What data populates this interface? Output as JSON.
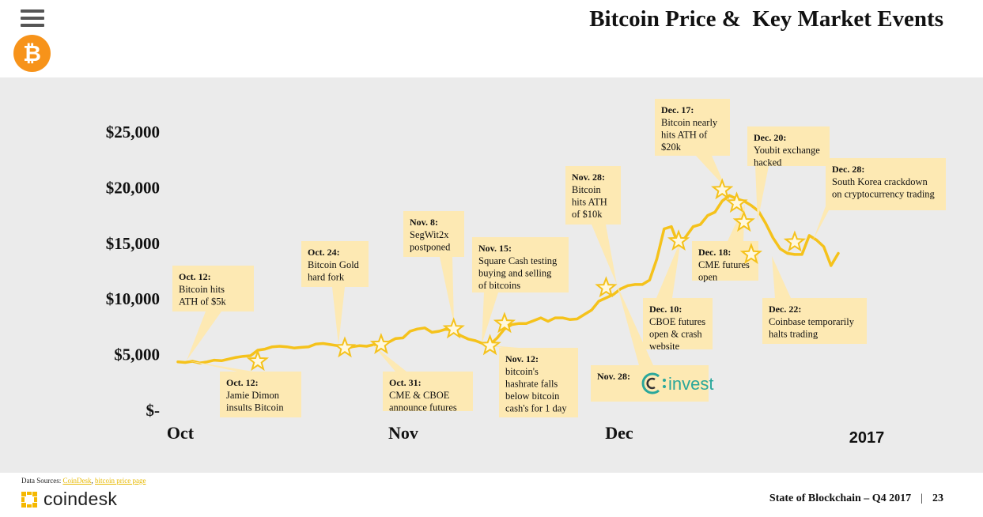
{
  "header": {
    "title": "Bitcoin Price &  Key Market Events"
  },
  "icons": {
    "menu": "hamburger-menu-icon",
    "logo": "bitcoin-logo-icon"
  },
  "footer": {
    "sources_prefix": "Data Sources: ",
    "source_1": "CoinDesk",
    "source_sep": ", ",
    "source_2": "bitcoin price page",
    "brand": "coindesk",
    "report": "State of Blockchain – Q4 2017",
    "separator": "|",
    "page": "23"
  },
  "colors": {
    "line": "#f5c21b",
    "annotation": "#fde9b3",
    "panel": "#ebebeb",
    "bitcoin": "#f7931a",
    "coindesk": "#f5b800",
    "invest": "#2aa79b"
  },
  "chart_data": {
    "type": "line",
    "title": "Bitcoin Price &  Key Market Events",
    "yticks": [
      "$25,000",
      "$20,000",
      "$15,000",
      "$10,000",
      "$5,000",
      "$-"
    ],
    "ytick_values": [
      25000,
      20000,
      15000,
      10000,
      5000,
      0
    ],
    "ylim": [
      0,
      25000
    ],
    "xticks": [
      "Oct",
      "Nov",
      "Dec"
    ],
    "xtick_values": [
      1,
      32,
      62
    ],
    "year_label": "2017",
    "xlim": [
      1,
      92
    ],
    "series": [
      {
        "points": [
          [
            1,
            4350
          ],
          [
            2,
            4300
          ],
          [
            3,
            4400
          ],
          [
            4,
            4250
          ],
          [
            5,
            4350
          ],
          [
            6,
            4500
          ],
          [
            7,
            4450
          ],
          [
            8,
            4600
          ],
          [
            9,
            4750
          ],
          [
            10,
            4850
          ],
          [
            11,
            4900
          ],
          [
            12,
            5400
          ],
          [
            13,
            5500
          ],
          [
            14,
            5700
          ],
          [
            15,
            5750
          ],
          [
            16,
            5700
          ],
          [
            17,
            5600
          ],
          [
            18,
            5650
          ],
          [
            19,
            5700
          ],
          [
            20,
            5950
          ],
          [
            21,
            6000
          ],
          [
            22,
            5900
          ],
          [
            23,
            5800
          ],
          [
            24,
            5500
          ],
          [
            25,
            5700
          ],
          [
            26,
            5800
          ],
          [
            27,
            5750
          ],
          [
            28,
            5900
          ],
          [
            29,
            5900
          ],
          [
            30,
            6100
          ],
          [
            31,
            6450
          ],
          [
            32,
            6500
          ],
          [
            33,
            7100
          ],
          [
            34,
            7300
          ],
          [
            35,
            7400
          ],
          [
            36,
            7000
          ],
          [
            37,
            7100
          ],
          [
            38,
            7300
          ],
          [
            39,
            7100
          ],
          [
            40,
            6700
          ],
          [
            41,
            6400
          ],
          [
            42,
            6250
          ],
          [
            43,
            6000
          ],
          [
            44,
            5900
          ],
          [
            45,
            6500
          ],
          [
            46,
            7300
          ],
          [
            47,
            7700
          ],
          [
            48,
            7800
          ],
          [
            49,
            7800
          ],
          [
            50,
            8050
          ],
          [
            51,
            8300
          ],
          [
            52,
            8000
          ],
          [
            53,
            8300
          ],
          [
            54,
            8300
          ],
          [
            55,
            8150
          ],
          [
            56,
            8200
          ],
          [
            57,
            8600
          ],
          [
            58,
            9000
          ],
          [
            59,
            9800
          ],
          [
            60,
            10100
          ],
          [
            61,
            10400
          ],
          [
            62,
            10900
          ],
          [
            63,
            11200
          ],
          [
            64,
            11300
          ],
          [
            65,
            11300
          ],
          [
            66,
            11700
          ],
          [
            67,
            13600
          ],
          [
            68,
            16300
          ],
          [
            69,
            16500
          ],
          [
            70,
            14800
          ],
          [
            71,
            15600
          ],
          [
            72,
            16500
          ],
          [
            73,
            16700
          ],
          [
            74,
            17500
          ],
          [
            75,
            17800
          ],
          [
            76,
            18800
          ],
          [
            77,
            19300
          ],
          [
            78,
            19000
          ],
          [
            79,
            18800
          ],
          [
            80,
            18400
          ],
          [
            81,
            17900
          ],
          [
            82,
            16800
          ],
          [
            83,
            15500
          ],
          [
            84,
            14500
          ],
          [
            85,
            14100
          ],
          [
            86,
            14000
          ],
          [
            87,
            14000
          ],
          [
            88,
            15700
          ],
          [
            89,
            15300
          ],
          [
            90,
            14700
          ],
          [
            91,
            13000
          ],
          [
            92,
            14100
          ]
        ]
      }
    ],
    "event_markers": [
      {
        "x": 12,
        "y": 4400
      },
      {
        "x": 24,
        "y": 5600
      },
      {
        "x": 29,
        "y": 5900
      },
      {
        "x": 39,
        "y": 7300
      },
      {
        "x": 44,
        "y": 5800
      },
      {
        "x": 46,
        "y": 7800
      },
      {
        "x": 60,
        "y": 11000
      },
      {
        "x": 70,
        "y": 15200
      },
      {
        "x": 76,
        "y": 19800
      },
      {
        "x": 78,
        "y": 18600
      },
      {
        "x": 79,
        "y": 16900
      },
      {
        "x": 80,
        "y": 14000
      },
      {
        "x": 86,
        "y": 15100
      }
    ],
    "annotations": [
      {
        "date": "Oct. 12:",
        "lines": [
          "Bitcoin hits",
          "ATH of $5k"
        ]
      },
      {
        "date": "Oct. 12:",
        "lines": [
          "Jamie Dimon",
          "insults Bitcoin"
        ]
      },
      {
        "date": "Oct. 24:",
        "lines": [
          "Bitcoin Gold",
          "hard fork"
        ]
      },
      {
        "date": "Oct. 31:",
        "lines": [
          "CME & CBOE",
          "announce futures"
        ]
      },
      {
        "date": "Nov. 8:",
        "lines": [
          "SegWit2x",
          "postponed"
        ]
      },
      {
        "date": "Nov. 15:",
        "lines": [
          "Square Cash testing",
          "buying and selling",
          "of bitcoins"
        ]
      },
      {
        "date": "Nov. 12:",
        "lines": [
          "bitcoin's",
          "hashrate falls",
          "below bitcoin",
          "cash's for 1 day"
        ]
      },
      {
        "date": "Nov. 28:",
        "lines": [
          "Bitcoin",
          "hits ATH",
          "of  $10k"
        ]
      },
      {
        "date": "Nov. 28:",
        "lines": [],
        "logo_text": "invest"
      },
      {
        "date": "Dec. 10:",
        "lines": [
          "CBOE futures",
          "open & crash",
          "website"
        ]
      },
      {
        "date": "Dec. 17:",
        "lines": [
          "Bitcoin nearly",
          "hits ATH of",
          "$20k"
        ]
      },
      {
        "date": "Dec. 18:",
        "lines": [
          "CME futures",
          "open"
        ]
      },
      {
        "date": "Dec. 20:",
        "lines": [
          "Youbit exchange",
          "hacked"
        ]
      },
      {
        "date": "Dec. 22:",
        "lines": [
          "Coinbase temporarily",
          "halts trading"
        ]
      },
      {
        "date": "Dec. 28:",
        "lines": [
          "South Korea crackdown",
          "on cryptocurrency trading"
        ]
      }
    ]
  }
}
